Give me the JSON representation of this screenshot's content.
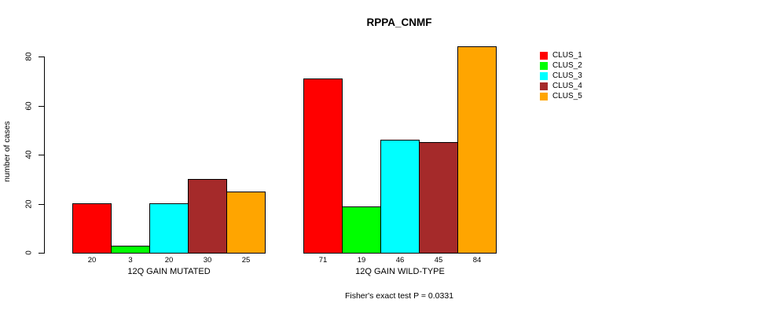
{
  "chart_data": {
    "type": "bar",
    "title": "RPPA_CNMF",
    "ylabel": "number of cases",
    "xlabel": "",
    "ylim": [
      0,
      80
    ],
    "yticks": [
      0,
      20,
      40,
      60,
      80
    ],
    "grid": false,
    "legend_position": "right",
    "categories": [
      "12Q GAIN MUTATED",
      "12Q GAIN WILD-TYPE"
    ],
    "series": [
      {
        "name": "CLUS_1",
        "color": "#FF0000",
        "values": [
          20,
          71
        ]
      },
      {
        "name": "CLUS_2",
        "color": "#00FF00",
        "values": [
          3,
          19
        ]
      },
      {
        "name": "CLUS_3",
        "color": "#00FFFF",
        "values": [
          20,
          46
        ]
      },
      {
        "name": "CLUS_4",
        "color": "#A52A2A",
        "values": [
          30,
          45
        ]
      },
      {
        "name": "CLUS_5",
        "color": "#FFA500",
        "values": [
          25,
          84
        ]
      }
    ],
    "bar_value_labels": {
      "12Q GAIN MUTATED": [
        20,
        3,
        20,
        30,
        25
      ],
      "12Q GAIN WILD-TYPE": [
        71,
        19,
        46,
        45,
        84
      ]
    },
    "footnote": "Fisher's exact test P = 0.0331",
    "axis_color": "#000000",
    "bar_border_color": "#000000",
    "background_color": "#FFFFFF"
  }
}
